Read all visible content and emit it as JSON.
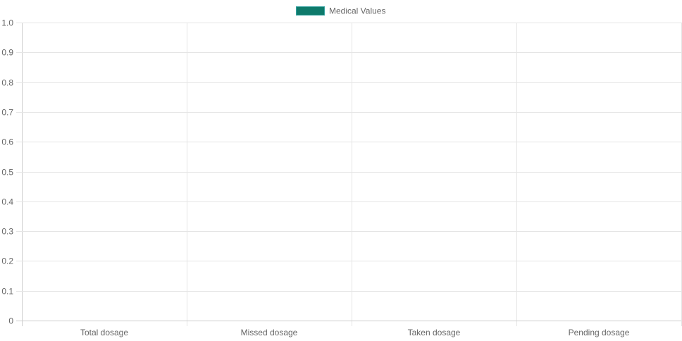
{
  "chart_data": {
    "type": "bar",
    "categories": [
      "Total dosage",
      "Missed dosage",
      "Taken dosage",
      "Pending dosage"
    ],
    "series": [
      {
        "name": "Medical Values",
        "values": [
          0,
          0,
          0,
          0
        ],
        "color": "#0e7a6b"
      }
    ],
    "ylim": [
      0,
      1
    ],
    "y_ticks": [
      "0",
      "0.1",
      "0.2",
      "0.3",
      "0.4",
      "0.5",
      "0.6",
      "0.7",
      "0.8",
      "0.9",
      "1.0"
    ],
    "grid": true,
    "legend_position": "top-center",
    "colors": {
      "grid": "#e5e5e5",
      "axis": "#cccccc",
      "text": "#666666",
      "legend_swatch": "#0e7a6b",
      "legend_swatch_border": "#36a2a0"
    }
  }
}
